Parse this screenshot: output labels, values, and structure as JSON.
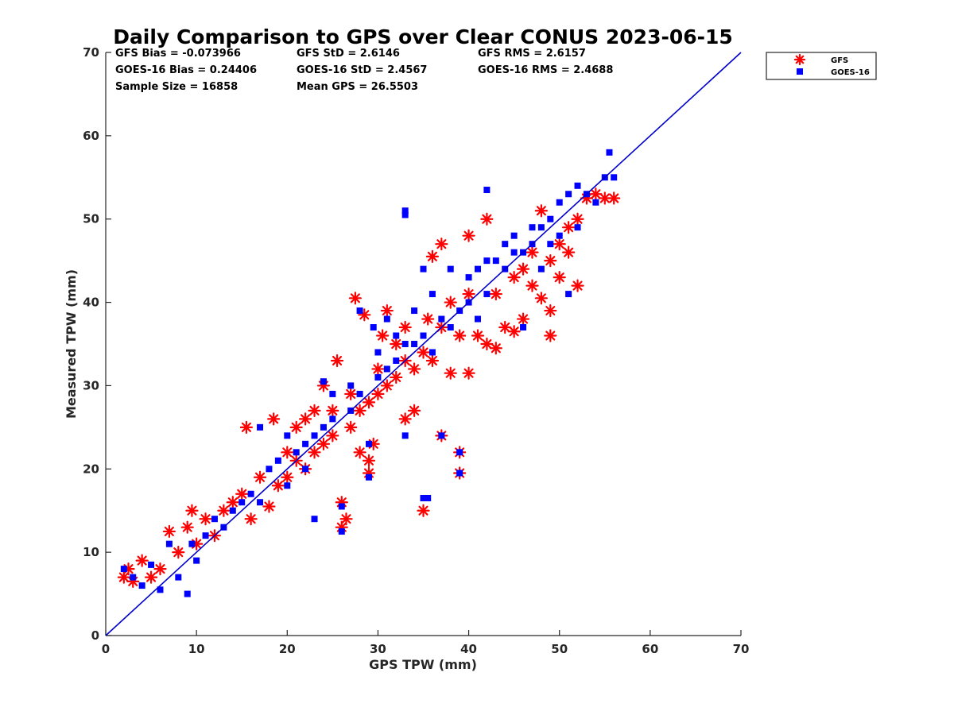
{
  "chart_data": {
    "type": "scatter",
    "title": "Daily Comparison to GPS over Clear CONUS 2023-06-15",
    "xlabel": "GPS TPW (mm)",
    "ylabel": "Measured TPW (mm)",
    "xlim": [
      0,
      70
    ],
    "ylim": [
      0,
      70
    ],
    "xticks": [
      "0",
      "10",
      "20",
      "30",
      "40",
      "50",
      "60",
      "70"
    ],
    "yticks": [
      "0",
      "10",
      "20",
      "30",
      "40",
      "50",
      "60",
      "70"
    ],
    "grid": false,
    "legend_position": "outside top-right",
    "reference_line": {
      "name": "1:1 line",
      "color": "#0000cc",
      "x": [
        0,
        70
      ],
      "y": [
        0,
        70
      ]
    },
    "stats": [
      "GFS Bias = -0.073966",
      "GFS StD = 2.6146",
      "GFS RMS = 2.6157",
      "GOES-16 Bias = 0.24406",
      "GOES-16 StD = 2.4567",
      "GOES-16 RMS = 2.4688",
      "Sample Size = 16858",
      "Mean GPS = 26.5503"
    ],
    "series": [
      {
        "name": "GFS",
        "marker": "asterisk",
        "color": "#ff0000",
        "points": [
          [
            2,
            7
          ],
          [
            2.5,
            8
          ],
          [
            3,
            6.5
          ],
          [
            4,
            9
          ],
          [
            5,
            7
          ],
          [
            6,
            8
          ],
          [
            7,
            12.5
          ],
          [
            8,
            10
          ],
          [
            9,
            13
          ],
          [
            9.5,
            15
          ],
          [
            10,
            11
          ],
          [
            11,
            14
          ],
          [
            12,
            12
          ],
          [
            13,
            15
          ],
          [
            14,
            16
          ],
          [
            15,
            17
          ],
          [
            15.5,
            25
          ],
          [
            16,
            14
          ],
          [
            17,
            19
          ],
          [
            18,
            15.5
          ],
          [
            18.5,
            26
          ],
          [
            19,
            18
          ],
          [
            20,
            19
          ],
          [
            20,
            22
          ],
          [
            21,
            21
          ],
          [
            21,
            25
          ],
          [
            22,
            20
          ],
          [
            22,
            26
          ],
          [
            23,
            22
          ],
          [
            23,
            27
          ],
          [
            24,
            23
          ],
          [
            24,
            30
          ],
          [
            25,
            24
          ],
          [
            25,
            27
          ],
          [
            25.5,
            33
          ],
          [
            26,
            13
          ],
          [
            26,
            16
          ],
          [
            26.5,
            14
          ],
          [
            27,
            25
          ],
          [
            27,
            29
          ],
          [
            27.5,
            40.5
          ],
          [
            28,
            22
          ],
          [
            28,
            27
          ],
          [
            28.5,
            38.5
          ],
          [
            29,
            19.5
          ],
          [
            29,
            21
          ],
          [
            29,
            28
          ],
          [
            29.5,
            23
          ],
          [
            30,
            29
          ],
          [
            30,
            32
          ],
          [
            30.5,
            36
          ],
          [
            31,
            39
          ],
          [
            31,
            30
          ],
          [
            32,
            31
          ],
          [
            32,
            35
          ],
          [
            33,
            26
          ],
          [
            33,
            33
          ],
          [
            33,
            37
          ],
          [
            34,
            27
          ],
          [
            34,
            32
          ],
          [
            35,
            34
          ],
          [
            35,
            15
          ],
          [
            35.5,
            38
          ],
          [
            36,
            45.5
          ],
          [
            36,
            33
          ],
          [
            37,
            47
          ],
          [
            37,
            24
          ],
          [
            37,
            37
          ],
          [
            38,
            31.5
          ],
          [
            38,
            40
          ],
          [
            39,
            22
          ],
          [
            39,
            19.5
          ],
          [
            39,
            36
          ],
          [
            40,
            31.5
          ],
          [
            40,
            41
          ],
          [
            40,
            48
          ],
          [
            41,
            36
          ],
          [
            42,
            35
          ],
          [
            42,
            50
          ],
          [
            43,
            34.5
          ],
          [
            43,
            41
          ],
          [
            44,
            37
          ],
          [
            45,
            36.5
          ],
          [
            45,
            43
          ],
          [
            46,
            38
          ],
          [
            46,
            44
          ],
          [
            47,
            42
          ],
          [
            47,
            46
          ],
          [
            48,
            51
          ],
          [
            48,
            40.5
          ],
          [
            49,
            36
          ],
          [
            49,
            39
          ],
          [
            49,
            45
          ],
          [
            50,
            43
          ],
          [
            50,
            47
          ],
          [
            51,
            49
          ],
          [
            51,
            46
          ],
          [
            52,
            50
          ],
          [
            52,
            42
          ],
          [
            53,
            52.5
          ],
          [
            54,
            53
          ],
          [
            55,
            52.5
          ],
          [
            56,
            52.5
          ]
        ]
      },
      {
        "name": "GOES-16",
        "marker": "square",
        "color": "#0000ff",
        "points": [
          [
            2,
            8
          ],
          [
            3,
            7
          ],
          [
            4,
            6
          ],
          [
            5,
            8.5
          ],
          [
            6,
            5.5
          ],
          [
            7,
            11
          ],
          [
            8,
            7
          ],
          [
            9,
            5
          ],
          [
            9.5,
            11
          ],
          [
            10,
            9
          ],
          [
            11,
            12
          ],
          [
            12,
            14
          ],
          [
            13,
            13
          ],
          [
            14,
            15
          ],
          [
            15,
            16
          ],
          [
            16,
            17
          ],
          [
            17,
            16
          ],
          [
            17,
            25
          ],
          [
            18,
            20
          ],
          [
            19,
            21
          ],
          [
            20,
            18
          ],
          [
            20,
            24
          ],
          [
            21,
            22
          ],
          [
            22,
            23
          ],
          [
            22,
            20
          ],
          [
            23,
            24
          ],
          [
            23,
            14
          ],
          [
            24,
            25
          ],
          [
            24,
            30.5
          ],
          [
            25,
            26
          ],
          [
            25,
            29
          ],
          [
            26,
            12.5
          ],
          [
            26,
            15.5
          ],
          [
            27,
            27
          ],
          [
            27,
            30
          ],
          [
            28,
            39
          ],
          [
            28,
            29
          ],
          [
            29,
            23
          ],
          [
            29,
            19
          ],
          [
            29.5,
            37
          ],
          [
            30,
            31
          ],
          [
            30,
            34
          ],
          [
            31,
            32
          ],
          [
            31,
            38
          ],
          [
            32,
            33
          ],
          [
            32,
            36
          ],
          [
            33,
            24
          ],
          [
            33,
            51
          ],
          [
            33,
            35
          ],
          [
            34,
            35
          ],
          [
            34,
            39
          ],
          [
            35,
            16.5
          ],
          [
            35,
            36
          ],
          [
            35,
            44
          ],
          [
            36,
            34
          ],
          [
            36,
            41
          ],
          [
            37,
            38
          ],
          [
            37,
            24
          ],
          [
            38,
            44
          ],
          [
            38,
            37
          ],
          [
            39,
            22
          ],
          [
            39,
            19.5
          ],
          [
            39,
            39
          ],
          [
            40,
            40
          ],
          [
            40,
            43
          ],
          [
            41,
            44
          ],
          [
            41,
            38
          ],
          [
            42,
            45
          ],
          [
            42,
            41
          ],
          [
            43,
            45
          ],
          [
            44,
            47
          ],
          [
            44,
            44
          ],
          [
            45,
            46
          ],
          [
            45,
            48
          ],
          [
            46,
            46
          ],
          [
            46,
            37
          ],
          [
            47,
            47
          ],
          [
            47,
            49
          ],
          [
            48,
            49
          ],
          [
            48,
            44
          ],
          [
            49,
            50
          ],
          [
            49,
            47
          ],
          [
            50,
            48
          ],
          [
            50,
            52
          ],
          [
            51,
            53
          ],
          [
            51,
            41
          ],
          [
            52,
            54
          ],
          [
            52,
            49
          ],
          [
            53,
            53
          ],
          [
            54,
            52
          ],
          [
            55,
            55
          ],
          [
            55.5,
            58
          ],
          [
            56,
            55
          ],
          [
            35.5,
            16.5
          ],
          [
            33,
            50.5
          ],
          [
            42,
            53.5
          ]
        ]
      }
    ]
  }
}
